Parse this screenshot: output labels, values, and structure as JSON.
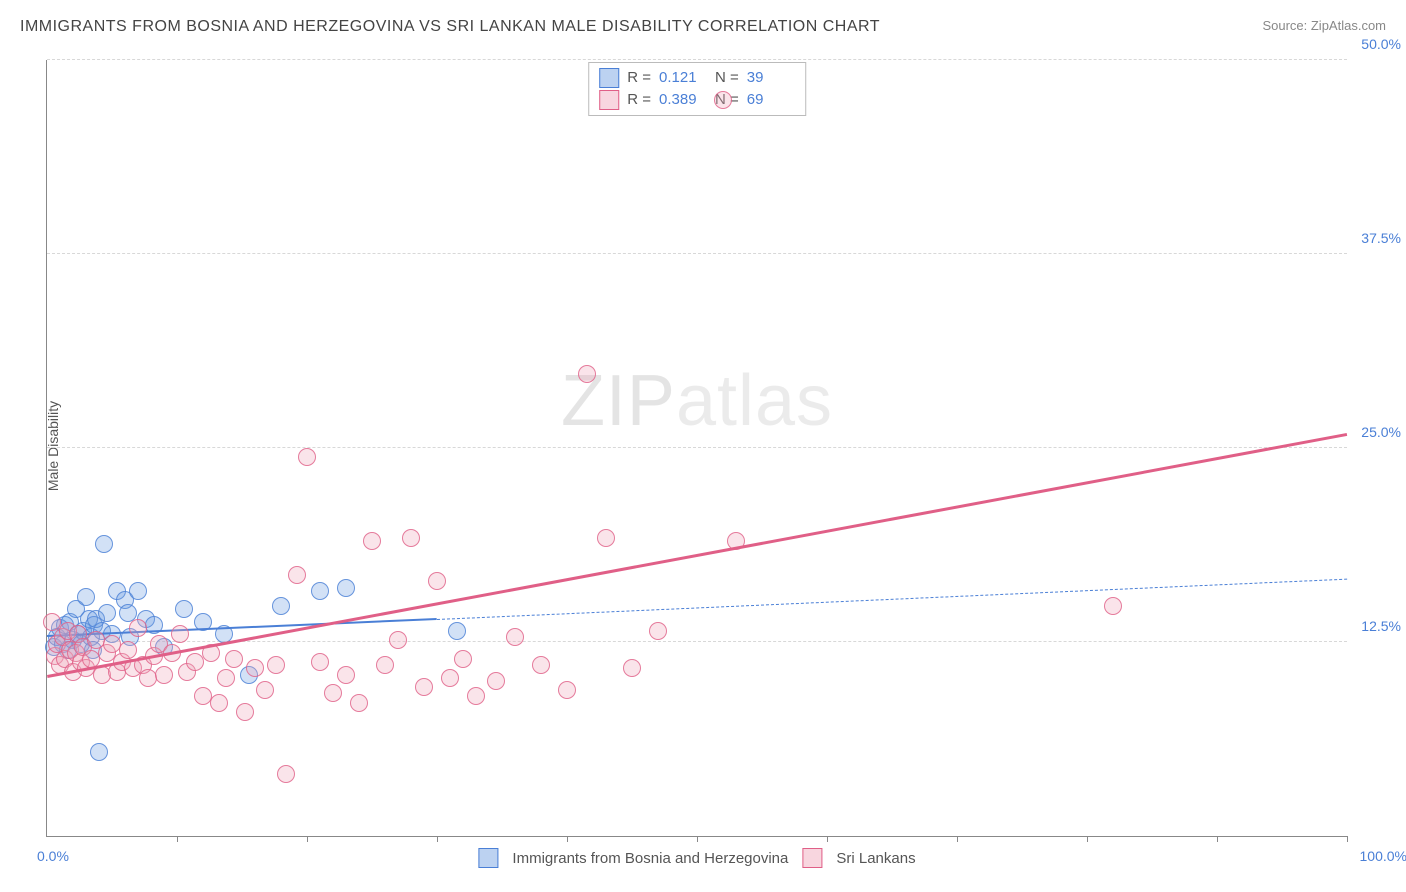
{
  "title": "IMMIGRANTS FROM BOSNIA AND HERZEGOVINA VS SRI LANKAN MALE DISABILITY CORRELATION CHART",
  "source": "Source: ZipAtlas.com",
  "ylabel": "Male Disability",
  "watermark_a": "ZIP",
  "watermark_b": "atlas",
  "chart": {
    "type": "scatter",
    "xlim": [
      0,
      100
    ],
    "ylim": [
      0,
      50
    ],
    "x_start_label": "0.0%",
    "x_end_label": "100.0%",
    "y_ticks": [
      12.5,
      25.0,
      37.5,
      50.0
    ],
    "y_tick_labels": [
      "12.5%",
      "25.0%",
      "37.5%",
      "50.0%"
    ],
    "x_ticks": [
      10,
      20,
      30,
      40,
      50,
      60,
      70,
      80,
      90,
      100
    ],
    "grid_color": "#d8d8d8",
    "background_color": "#ffffff",
    "marker_radius": 8,
    "marker_fill_opacity": 0.3,
    "marker_stroke_opacity": 0.8,
    "series": [
      {
        "id": "bosnia",
        "label": "Immigrants from Bosnia and Herzegovina",
        "color": "#6b9be0",
        "stroke": "#4a7fd6",
        "R": "0.121",
        "N": "39",
        "trend": {
          "x0": 0,
          "y0": 12.8,
          "x1_solid": 30,
          "y1_solid": 13.9,
          "x1_dash": 100,
          "y1_dash": 16.5,
          "line_width": 2,
          "dash_width": 1
        },
        "points": [
          [
            0.5,
            12.2
          ],
          [
            0.8,
            12.8
          ],
          [
            1.0,
            13.4
          ],
          [
            1.2,
            12.4
          ],
          [
            1.4,
            13.6
          ],
          [
            1.6,
            12.0
          ],
          [
            1.8,
            13.8
          ],
          [
            2.0,
            12.6
          ],
          [
            2.2,
            14.6
          ],
          [
            2.4,
            13.0
          ],
          [
            2.6,
            12.4
          ],
          [
            2.8,
            13.2
          ],
          [
            3.0,
            15.4
          ],
          [
            3.2,
            14.0
          ],
          [
            3.4,
            12.8
          ],
          [
            3.6,
            13.6
          ],
          [
            3.8,
            14.0
          ],
          [
            4.2,
            13.2
          ],
          [
            4.4,
            18.8
          ],
          [
            4.6,
            14.4
          ],
          [
            5.0,
            13.0
          ],
          [
            5.4,
            15.8
          ],
          [
            6.0,
            15.2
          ],
          [
            6.2,
            14.4
          ],
          [
            6.4,
            12.8
          ],
          [
            7.0,
            15.8
          ],
          [
            7.6,
            14.0
          ],
          [
            8.2,
            13.6
          ],
          [
            9.0,
            12.2
          ],
          [
            10.5,
            14.6
          ],
          [
            12.0,
            13.8
          ],
          [
            13.6,
            13.0
          ],
          [
            15.5,
            10.4
          ],
          [
            18.0,
            14.8
          ],
          [
            21.0,
            15.8
          ],
          [
            23.0,
            16.0
          ],
          [
            31.5,
            13.2
          ],
          [
            4.0,
            5.4
          ],
          [
            3.5,
            12.0
          ]
        ]
      },
      {
        "id": "srilanka",
        "label": "Sri Lankans",
        "color": "#f0a4b8",
        "stroke": "#e05f87",
        "R": "0.389",
        "N": "69",
        "trend": {
          "x0": 0,
          "y0": 10.2,
          "x1_solid": 100,
          "y1_solid": 25.8,
          "line_width": 3
        },
        "points": [
          [
            0.4,
            13.8
          ],
          [
            0.6,
            11.6
          ],
          [
            0.8,
            12.4
          ],
          [
            1.0,
            11.0
          ],
          [
            1.2,
            12.8
          ],
          [
            1.4,
            11.4
          ],
          [
            1.6,
            13.2
          ],
          [
            1.8,
            12.0
          ],
          [
            2.0,
            10.6
          ],
          [
            2.2,
            11.8
          ],
          [
            2.4,
            13.0
          ],
          [
            2.6,
            11.2
          ],
          [
            2.8,
            12.2
          ],
          [
            3.0,
            10.8
          ],
          [
            3.4,
            11.4
          ],
          [
            3.8,
            12.6
          ],
          [
            4.2,
            10.4
          ],
          [
            4.6,
            11.8
          ],
          [
            5.0,
            12.4
          ],
          [
            5.4,
            10.6
          ],
          [
            5.8,
            11.2
          ],
          [
            6.2,
            12.0
          ],
          [
            6.6,
            10.8
          ],
          [
            7.0,
            13.4
          ],
          [
            7.4,
            11.0
          ],
          [
            7.8,
            10.2
          ],
          [
            8.2,
            11.6
          ],
          [
            8.6,
            12.4
          ],
          [
            9.0,
            10.4
          ],
          [
            9.6,
            11.8
          ],
          [
            10.2,
            13.0
          ],
          [
            10.8,
            10.6
          ],
          [
            11.4,
            11.2
          ],
          [
            12.0,
            9.0
          ],
          [
            12.6,
            11.8
          ],
          [
            13.2,
            8.6
          ],
          [
            13.8,
            10.2
          ],
          [
            14.4,
            11.4
          ],
          [
            15.2,
            8.0
          ],
          [
            16.0,
            10.8
          ],
          [
            16.8,
            9.4
          ],
          [
            17.6,
            11.0
          ],
          [
            18.4,
            4.0
          ],
          [
            19.2,
            16.8
          ],
          [
            20.0,
            24.4
          ],
          [
            21.0,
            11.2
          ],
          [
            22.0,
            9.2
          ],
          [
            23.0,
            10.4
          ],
          [
            24.0,
            8.6
          ],
          [
            25.0,
            19.0
          ],
          [
            26.0,
            11.0
          ],
          [
            27.0,
            12.6
          ],
          [
            28.0,
            19.2
          ],
          [
            29.0,
            9.6
          ],
          [
            30.0,
            16.4
          ],
          [
            31.0,
            10.2
          ],
          [
            32.0,
            11.4
          ],
          [
            33.0,
            9.0
          ],
          [
            34.5,
            10.0
          ],
          [
            36.0,
            12.8
          ],
          [
            38.0,
            11.0
          ],
          [
            40.0,
            9.4
          ],
          [
            41.5,
            29.8
          ],
          [
            43.0,
            19.2
          ],
          [
            45.0,
            10.8
          ],
          [
            47.0,
            13.2
          ],
          [
            52.0,
            47.4
          ],
          [
            53.0,
            19.0
          ],
          [
            82.0,
            14.8
          ]
        ]
      }
    ]
  },
  "legend": {
    "stats_rows": [
      {
        "series": "bosnia",
        "r_label": "R =",
        "n_label": "N ="
      },
      {
        "series": "srilanka",
        "r_label": "R =",
        "n_label": "N ="
      }
    ]
  }
}
